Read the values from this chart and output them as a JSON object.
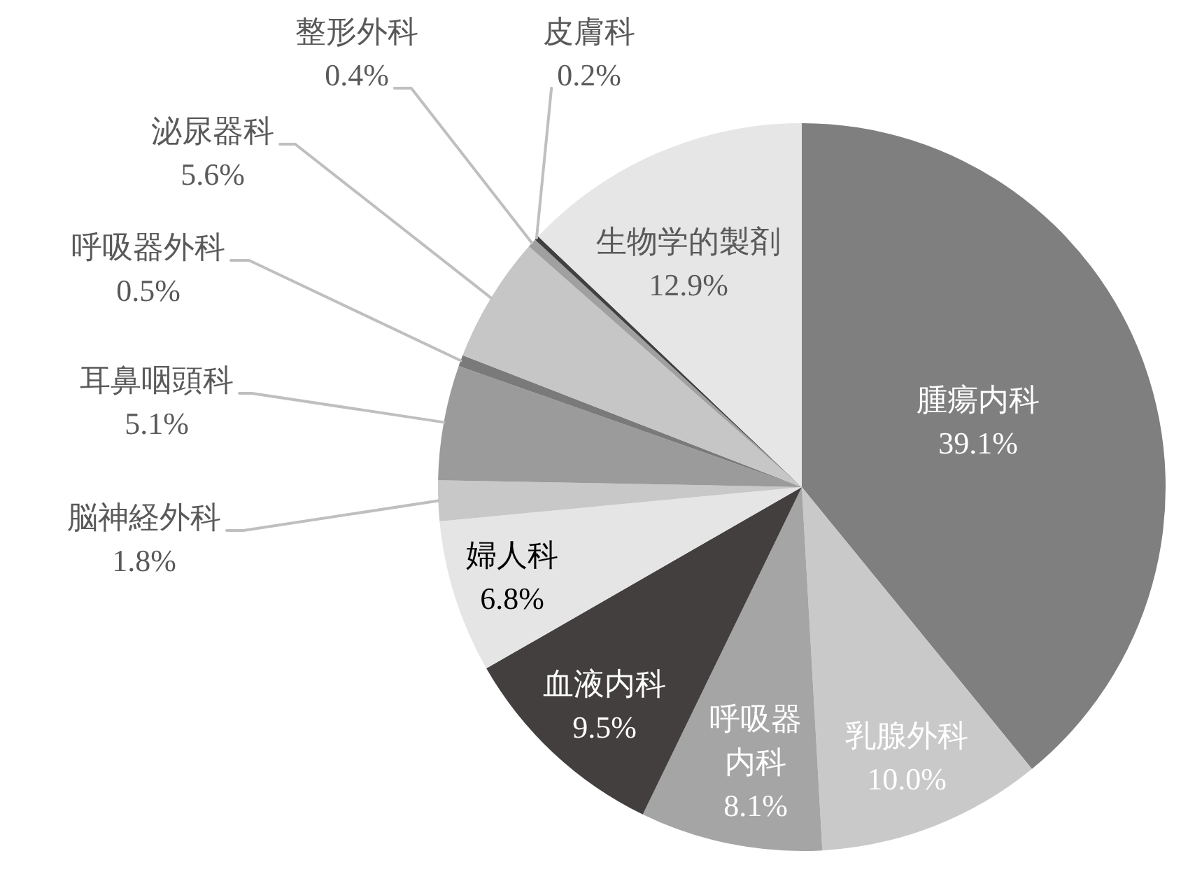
{
  "chart_data": {
    "type": "pie",
    "categories": [
      "腫瘍内科",
      "乳腺外科",
      "呼吸器内科",
      "血液内科",
      "婦人科",
      "脳神経外科",
      "耳鼻咽頭科",
      "呼吸器外科",
      "泌尿器科",
      "整形外科",
      "皮膚科",
      "生物学的製剤"
    ],
    "values": [
      39.1,
      10.0,
      8.1,
      9.5,
      6.8,
      1.8,
      5.1,
      0.5,
      5.6,
      0.4,
      0.2,
      12.9
    ],
    "colors": [
      "#7f7f7f",
      "#c9c9c9",
      "#a5a5a5",
      "#433f3f",
      "#e5e5e5",
      "#c8c8c8",
      "#9b9b9b",
      "#7a7a7a",
      "#c6c6c6",
      "#a0a0a0",
      "#404040",
      "#e6e6e6"
    ],
    "value_labels": [
      "39.1%",
      "10.0%",
      "8.1%",
      "9.5%",
      "6.8%",
      "1.8%",
      "5.1%",
      "0.5%",
      "5.6%",
      "0.4%",
      "0.2%",
      "12.9%"
    ]
  }
}
